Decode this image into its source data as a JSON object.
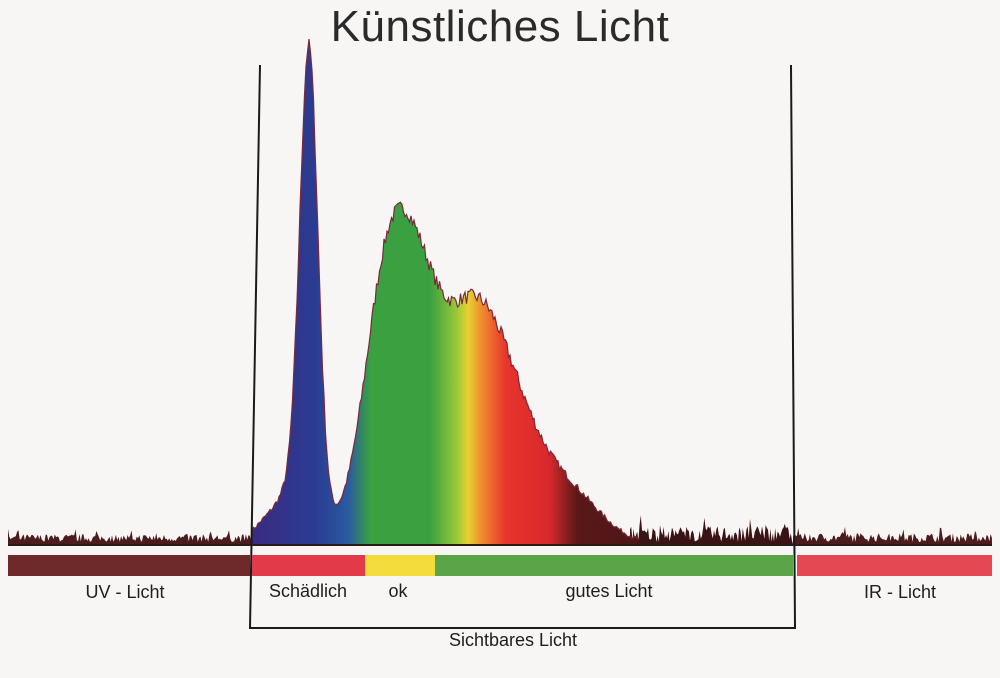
{
  "title": "Künstliches Licht",
  "bands": [
    {
      "label": "UV - Licht",
      "color": "#6e2a2a"
    },
    {
      "label": "Schädlich",
      "color": "#e23a48"
    },
    {
      "label": "ok",
      "color": "#f4dc3c"
    },
    {
      "label": "gutes Licht",
      "color": "#5ba548"
    },
    {
      "label": "IR - Licht",
      "color": "#e44852"
    }
  ],
  "visible_label": "Sichtbares Licht",
  "colors": {
    "violet": "#3a2a80",
    "blue": "#2a3c92",
    "green": "#3aa040",
    "yellow": "#e8d030",
    "orange": "#f08030",
    "red": "#e8342c",
    "dark_red": "#5a1818",
    "noise": "#4a1c1c"
  }
}
